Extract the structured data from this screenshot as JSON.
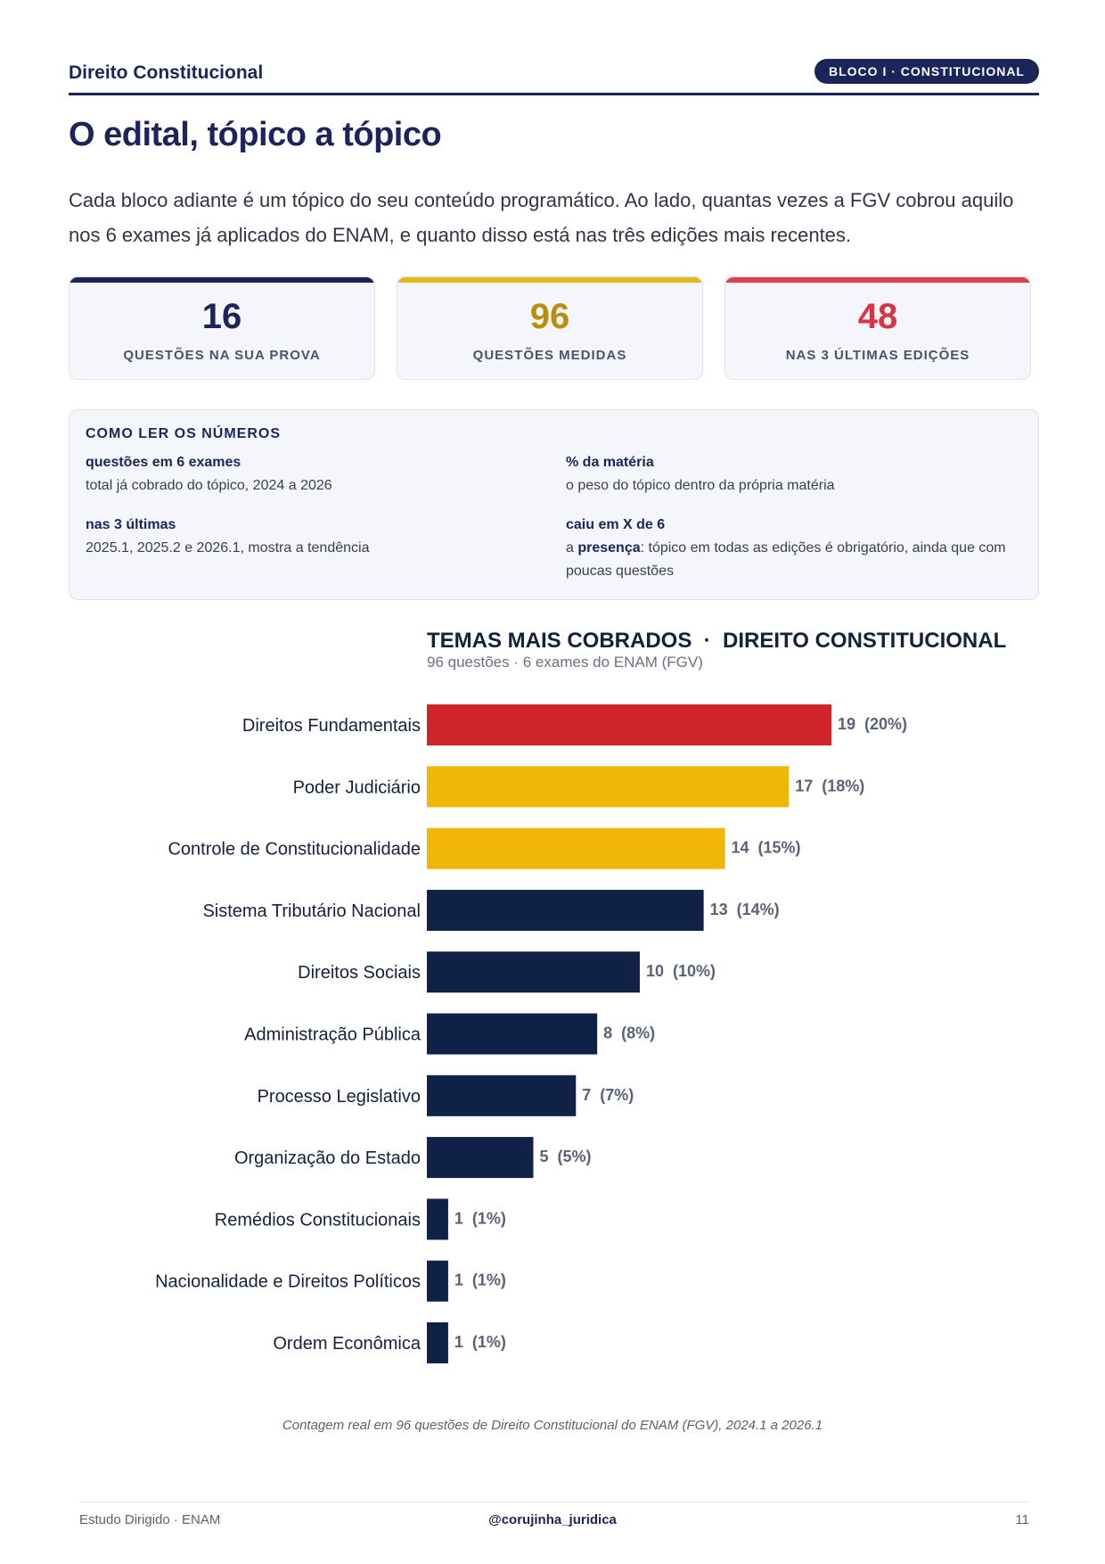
{
  "header": {
    "title": "Direito Constitucional",
    "badge": "BLOCO I · CONSTITUCIONAL"
  },
  "page_title": "O edital, tópico a tópico",
  "intro": "Cada bloco adiante é um tópico do seu conteúdo programático. Ao lado, quantas vezes a FGV cobrou aquilo nos 6 exames já aplicados do ENAM, e quanto disso está nas três edições mais recentes.",
  "stats": [
    {
      "value": "16",
      "label": "QUESTÕES NA SUA PROVA",
      "color": "#1b2559"
    },
    {
      "value": "96",
      "label": "QUESTÕES MEDIDAS",
      "color": "#b8900d"
    },
    {
      "value": "48",
      "label": "NAS 3 ÚLTIMAS EDIÇÕES",
      "color": "#d63545"
    }
  ],
  "legend": {
    "heading": "COMO LER OS NÚMEROS",
    "items": [
      {
        "term": "questões em 6 exames",
        "desc": "total já cobrado do tópico, 2024 a 2026"
      },
      {
        "term": "% da matéria",
        "desc": "o peso do tópico dentro da própria matéria"
      },
      {
        "term": "nas 3 últimas",
        "desc": "2025.1, 2025.2 e 2026.1, mostra a tendência"
      },
      {
        "term": "caiu em X de 6",
        "desc_prefix": "a ",
        "desc_bold": "presença",
        "desc_suffix": ": tópico em todas as edições é obrigatório, ainda que com poucas questões"
      }
    ]
  },
  "chart_data": {
    "type": "bar",
    "orientation": "horizontal",
    "title": "TEMAS MAIS COBRADOS  ·  DIREITO CONSTITUCIONAL",
    "subtitle": "96 questões · 6 exames do ENAM (FGV)",
    "categories": [
      "Direitos Fundamentais",
      "Poder Judiciário",
      "Controle de Constitucionalidade",
      "Sistema Tributário Nacional",
      "Direitos Sociais",
      "Administração Pública",
      "Processo Legislativo",
      "Organização do Estado",
      "Remédios Constitucionais",
      "Nacionalidade e Direitos Políticos",
      "Ordem Econômica"
    ],
    "values": [
      19,
      17,
      14,
      13,
      10,
      8,
      7,
      5,
      1,
      1,
      1
    ],
    "value_labels": [
      "19  (20%)",
      "17  (18%)",
      "14  (15%)",
      "13  (14%)",
      "10  (10%)",
      "8  (8%)",
      "7  (7%)",
      "5  (5%)",
      "1  (1%)",
      "1  (1%)",
      "1  (1%)"
    ],
    "colors": [
      "#d0242b",
      "#f0b708",
      "#f0b708",
      "#0f2147",
      "#0f2147",
      "#0f2147",
      "#0f2147",
      "#0f2147",
      "#0f2147",
      "#0f2147",
      "#0f2147"
    ],
    "xlim": [
      0,
      19
    ],
    "grid": false
  },
  "footnote": "Contagem real em 96 questões de Direito Constitucional do ENAM (FGV), 2024.1 a 2026.1",
  "footer": {
    "left": "Estudo Dirigido · ENAM",
    "center": "@corujinha_juridica",
    "page": "11"
  }
}
